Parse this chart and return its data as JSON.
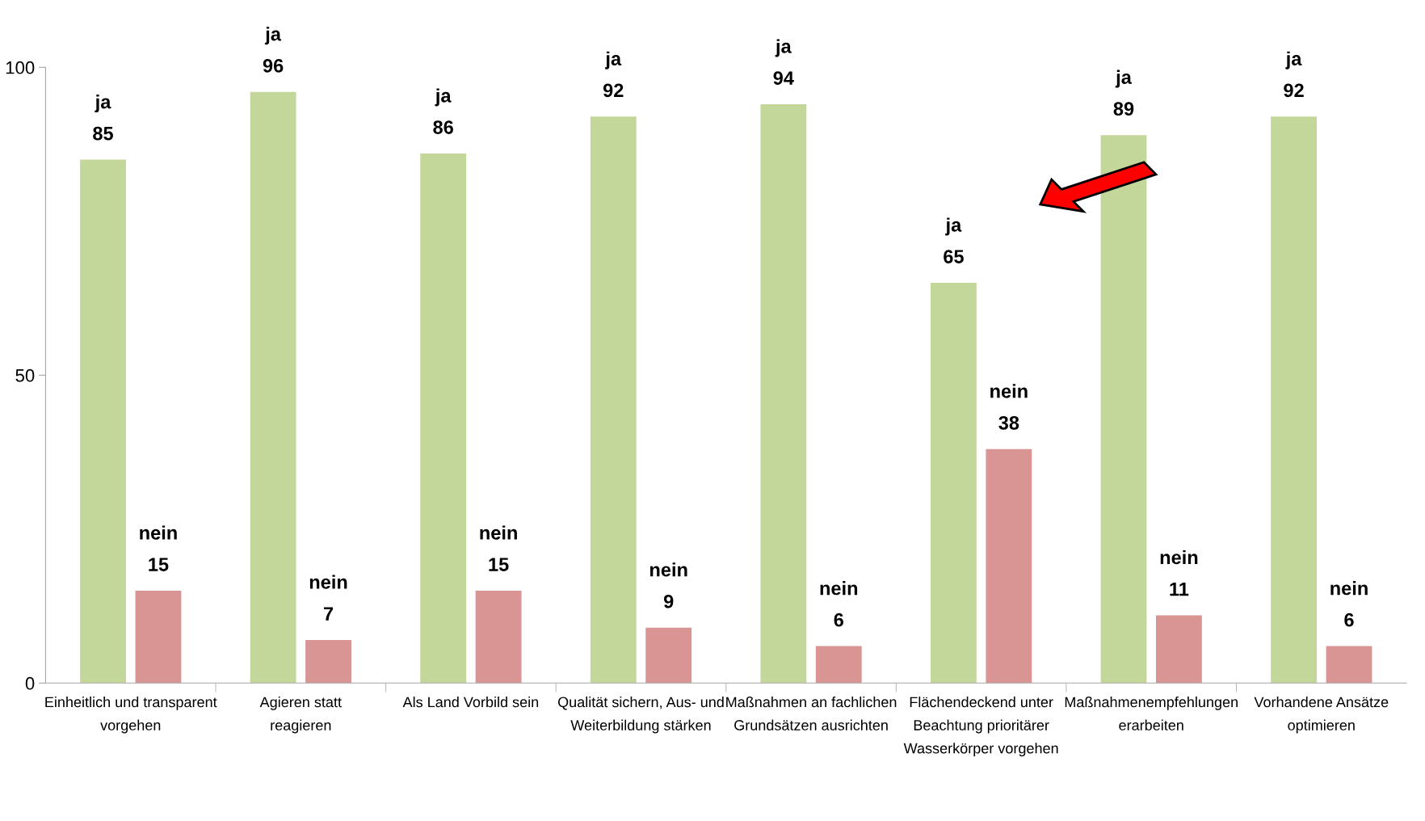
{
  "chart_data": {
    "type": "bar",
    "categories": [
      "Einheitlich und transparent\nvorgehen",
      "Agieren statt\nreagieren",
      "Als Land Vorbild sein",
      "Qualität sichern, Aus- und\nWeiterbildung stärken",
      "Maßnahmen an fachlichen\nGrundsätzen ausrichten",
      "Flächendeckend unter\nBeachtung prioritärer\nWasserkörper vorgehen",
      "Maßnahmenempfehlungen\nerarbeiten",
      "Vorhandene Ansätze\noptimieren"
    ],
    "series": [
      {
        "name": "ja",
        "color": "#c4d79b",
        "values": [
          85,
          96,
          86,
          92,
          94,
          65,
          89,
          92
        ]
      },
      {
        "name": "nein",
        "color": "#d99594",
        "values": [
          15,
          7,
          15,
          9,
          6,
          38,
          11,
          6
        ]
      }
    ],
    "ylim": [
      0,
      100
    ],
    "yticks": [
      0,
      50,
      100
    ],
    "grid": false,
    "legend": false,
    "data_labels": true
  }
}
